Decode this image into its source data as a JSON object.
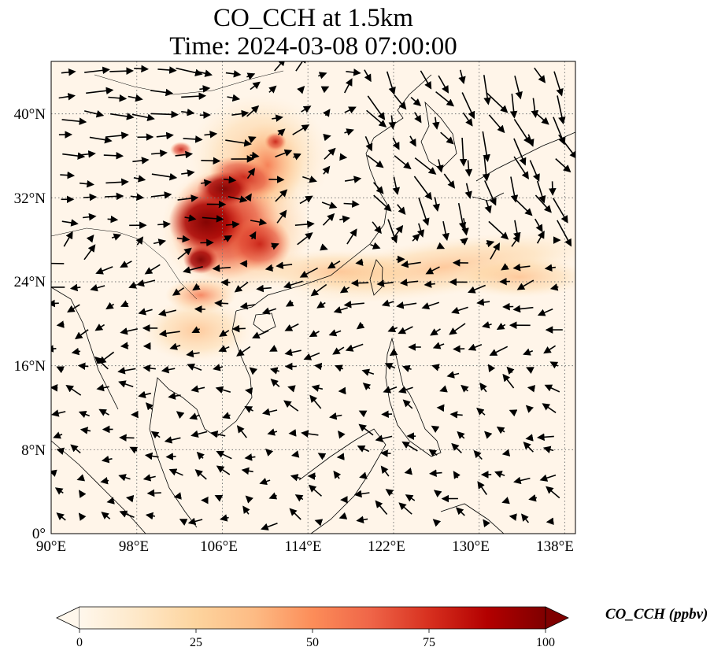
{
  "title": {
    "line1": "CO_CCH at 1.5km",
    "line2": "Time: 2024-03-08 07:00:00"
  },
  "map": {
    "projection": "PlateCarree",
    "lon_range": [
      90,
      139
    ],
    "lat_range": [
      0,
      45
    ],
    "lon_ticks": [
      "90°E",
      "98°E",
      "106°E",
      "114°E",
      "122°E",
      "130°E",
      "138°E"
    ],
    "lon_tick_values": [
      90,
      98,
      106,
      114,
      122,
      130,
      138
    ],
    "lat_ticks": [
      "0°",
      "8°N",
      "16°N",
      "24°N",
      "32°N",
      "40°N"
    ],
    "lat_tick_values": [
      0,
      8,
      16,
      24,
      32,
      40
    ],
    "gridlines": "dotted",
    "coastlines": true,
    "wind_vectors": true
  },
  "colorbar": {
    "label": "CO_CCH (ppbv)",
    "colormap": "OrRd",
    "min": 0,
    "max": 100,
    "ticks": [
      "0",
      "25",
      "50",
      "75",
      "100"
    ],
    "tick_values": [
      0,
      25,
      50,
      75,
      100
    ],
    "extend": "both",
    "colors": [
      "#fff7ec",
      "#fee8c8",
      "#fdd49e",
      "#fdbb84",
      "#fc8d59",
      "#ef6548",
      "#d7301f",
      "#b30000",
      "#7f0000"
    ]
  },
  "chart_data": {
    "type": "heatmap",
    "variable": "CO_CCH",
    "units": "ppbv",
    "height_km": 1.5,
    "time": "2024-03-08 07:00:00",
    "plumes": [
      {
        "lon": 104.5,
        "lat": 29.5,
        "value": 100
      },
      {
        "lon": 107.5,
        "lat": 31.5,
        "value": 90
      },
      {
        "lon": 109.0,
        "lat": 28.5,
        "value": 75
      },
      {
        "lon": 106.0,
        "lat": 34.5,
        "value": 60
      },
      {
        "lon": 110.0,
        "lat": 35.5,
        "value": 40
      },
      {
        "lon": 103.5,
        "lat": 23.5,
        "value": 55
      },
      {
        "lon": 116.0,
        "lat": 25.0,
        "value": 25
      },
      {
        "lon": 125.0,
        "lat": 26.0,
        "value": 20
      },
      {
        "lon": 133.0,
        "lat": 24.5,
        "value": 20
      }
    ]
  }
}
